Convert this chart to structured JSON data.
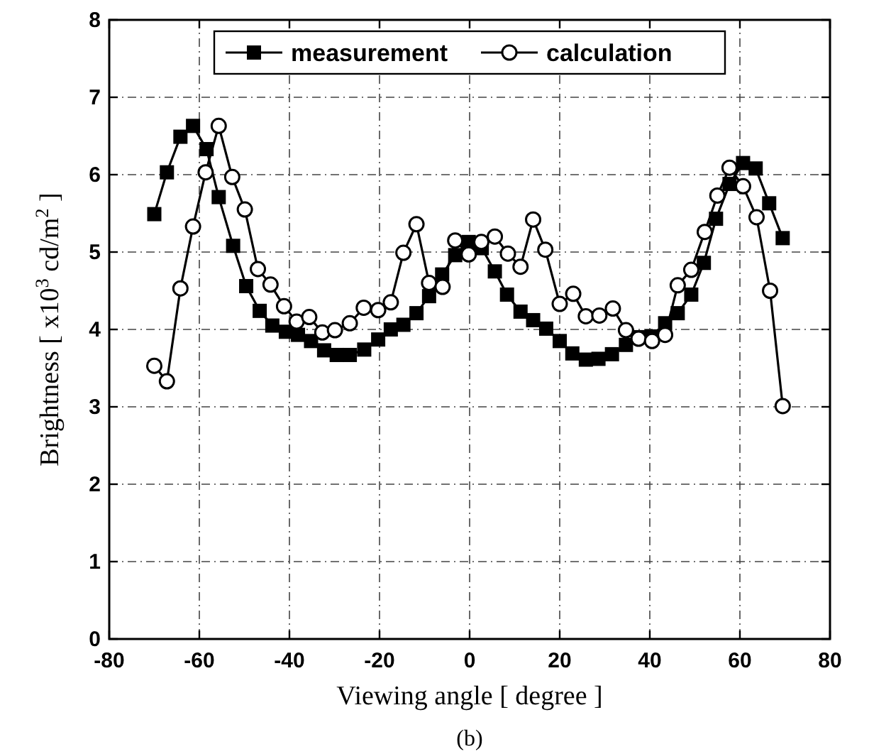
{
  "chart_data": {
    "type": "line",
    "xlabel": "Viewing angle [ degree ]",
    "ylabel": "Brightness [ x10$^{3}$ cd/m$^{2}$ ]",
    "annotations": [
      "(b)"
    ],
    "xlim": [
      -80,
      80
    ],
    "xticks": [
      -80,
      -60,
      -40,
      -20,
      0,
      20,
      40,
      60,
      80
    ],
    "ylim": [
      0,
      8
    ],
    "yticks": [
      0,
      1,
      2,
      3,
      4,
      5,
      6,
      7,
      8
    ],
    "grid": true,
    "legend": "top",
    "line_style": "solid",
    "series": [
      {
        "name": "measurement",
        "color": "#000000",
        "marker": "square",
        "x": [
          -70,
          -67.2,
          -64.2,
          -61.4,
          -58.4,
          -55.7,
          -52.5,
          -49.6,
          -46.6,
          -43.8,
          -40.8,
          -38.1,
          -35.2,
          -32.3,
          -29.5,
          -26.6,
          -23.4,
          -20.3,
          -17.5,
          -14.7,
          -11.8,
          -9,
          -6.1,
          -3.2,
          -0.2,
          2.7,
          5.6,
          8.3,
          11.3,
          14.1,
          17,
          20,
          22.8,
          25.8,
          28.6,
          31.6,
          34.7,
          37.5,
          40.5,
          43.4,
          46.2,
          49.2,
          52,
          54.7,
          57.7,
          60.7,
          63.5,
          66.5,
          69.5
        ],
        "values": [
          5.49,
          6.03,
          6.49,
          6.63,
          6.33,
          5.71,
          5.08,
          4.56,
          4.24,
          4.05,
          3.97,
          3.93,
          3.85,
          3.73,
          3.67,
          3.67,
          3.74,
          3.87,
          4.0,
          4.06,
          4.21,
          4.43,
          4.71,
          4.96,
          5.13,
          5.05,
          4.75,
          4.45,
          4.23,
          4.12,
          4.01,
          3.85,
          3.69,
          3.61,
          3.62,
          3.68,
          3.8,
          3.9,
          3.91,
          4.08,
          4.21,
          4.45,
          4.86,
          5.43,
          5.88,
          6.15,
          6.08,
          5.63,
          5.18
        ]
      },
      {
        "name": "calculation",
        "color": "#000000",
        "marker": "circle",
        "x": [
          -70,
          -67.2,
          -64.2,
          -61.4,
          -58.6,
          -55.7,
          -52.7,
          -49.9,
          -47,
          -44.2,
          -41.2,
          -38.4,
          -35.6,
          -32.7,
          -29.9,
          -26.6,
          -23.5,
          -20.3,
          -17.5,
          -14.7,
          -11.8,
          -9,
          -6,
          -3.2,
          -0.2,
          2.6,
          5.6,
          8.5,
          11.3,
          14.1,
          16.8,
          20,
          23,
          25.8,
          28.8,
          31.8,
          34.7,
          37.5,
          40.5,
          43.4,
          46.2,
          49.2,
          52.2,
          55,
          57.7,
          60.7,
          63.7,
          66.7,
          69.5
        ],
        "values": [
          3.53,
          3.33,
          4.53,
          5.33,
          6.03,
          6.63,
          5.97,
          5.55,
          4.78,
          4.58,
          4.3,
          4.1,
          4.16,
          3.96,
          3.99,
          4.08,
          4.28,
          4.25,
          4.35,
          4.99,
          5.36,
          4.6,
          4.55,
          5.15,
          4.97,
          5.13,
          5.2,
          4.98,
          4.81,
          5.42,
          5.03,
          4.33,
          4.46,
          4.17,
          4.18,
          4.27,
          3.99,
          3.88,
          3.85,
          3.93,
          4.57,
          4.77,
          5.26,
          5.73,
          6.09,
          5.85,
          5.45,
          4.5,
          3.01
        ]
      }
    ]
  }
}
